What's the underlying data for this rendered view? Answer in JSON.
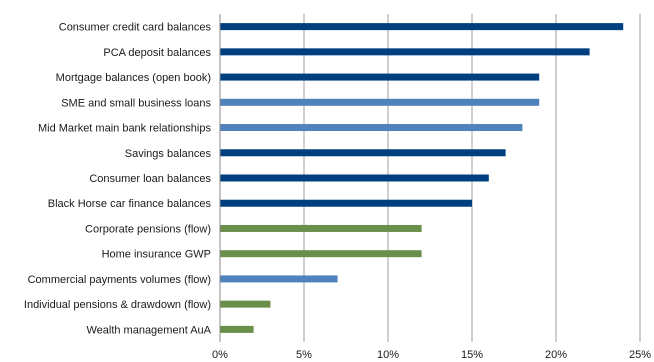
{
  "chart_data": {
    "type": "bar",
    "orientation": "horizontal",
    "categories": [
      "Consumer credit card balances",
      "PCA deposit balances",
      "Mortgage balances (open book)",
      "SME and small business loans",
      "Mid Market main bank relationships",
      "Savings balances",
      "Consumer loan balances",
      "Black Horse car finance balances",
      "Corporate pensions (flow)",
      "Home insurance GWP",
      "Commercial payments volumes (flow)",
      "Individual pensions & drawdown (flow)",
      "Wealth management AuA"
    ],
    "values": [
      24,
      22,
      19,
      19,
      18,
      17,
      16,
      15,
      12,
      12,
      7,
      3,
      2
    ],
    "bar_colors": [
      "#003f7f",
      "#003f7f",
      "#003f7f",
      "#4f81bd",
      "#4f81bd",
      "#003f7f",
      "#003f7f",
      "#003f7f",
      "#6a8f4a",
      "#6a8f4a",
      "#4f81bd",
      "#6a8f4a",
      "#6a8f4a"
    ],
    "x_ticks": [
      "0%",
      "5%",
      "10%",
      "15%",
      "20%",
      "25%"
    ],
    "xlim": [
      0,
      25
    ],
    "grid": "vertical",
    "legend": "none",
    "title": "",
    "xlabel": "",
    "ylabel": ""
  }
}
